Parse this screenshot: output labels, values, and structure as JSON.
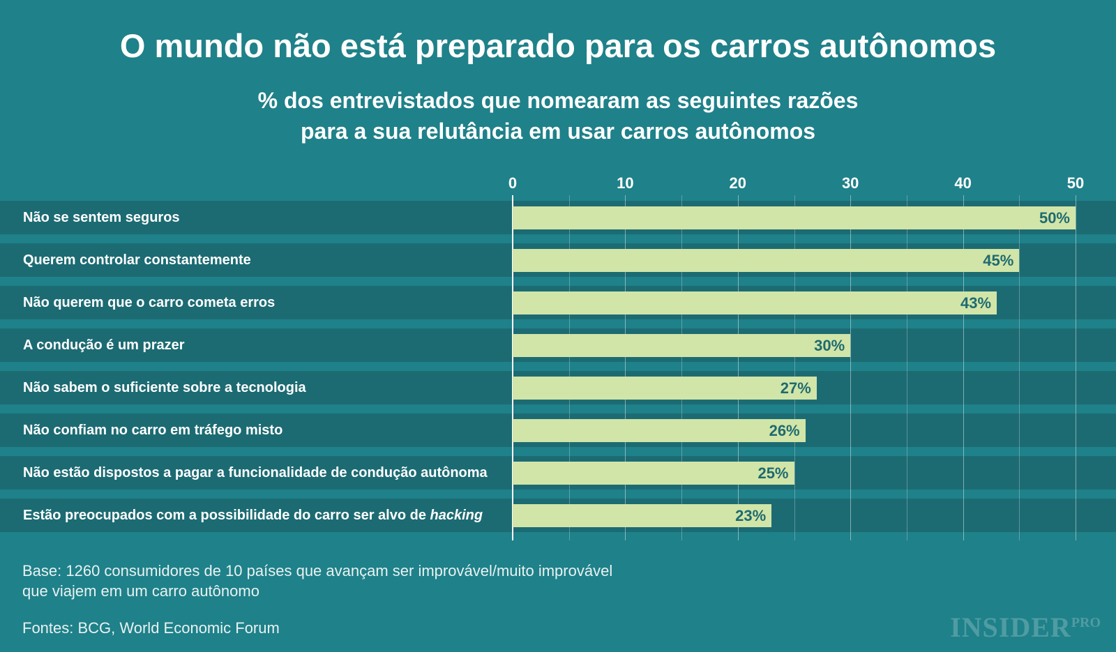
{
  "colors": {
    "background": "#1f8189",
    "band": "#1c6b73",
    "bar": "#d1e5a8",
    "data_label": "#1f6a70",
    "text": "#ffffff"
  },
  "chart_data": {
    "type": "bar",
    "orientation": "horizontal",
    "title": "O mundo não está preparado para os carros autônomos",
    "subtitle": [
      "% dos entrevistados que nomearam as seguintes razões",
      "para a sua relutância em usar carros autônomos"
    ],
    "xlim": [
      0,
      50
    ],
    "xticks": [
      0,
      10,
      20,
      30,
      40,
      50
    ],
    "xlabel": "",
    "ylabel": "",
    "grid": true,
    "categories": [
      "Não se sentem seguros",
      "Querem controlar constantemente",
      "Não querem que o carro cometa erros",
      "A condução é um prazer",
      "Não sabem o suficiente sobre a tecnologia",
      "Não confiam no carro em tráfego misto",
      "Não estão dispostos a pagar a funcionalidade de condução autônoma",
      "Estão preocupados com a possibilidade do carro ser alvo de hacking"
    ],
    "values": [
      50,
      45,
      43,
      30,
      27,
      26,
      25,
      23
    ],
    "value_labels": [
      "50%",
      "45%",
      "43%",
      "30%",
      "27%",
      "26%",
      "25%",
      "23%"
    ]
  },
  "footer": {
    "note": [
      "Base: 1260 consumidores de 10 países que avançam ser improvável/muito improvável",
      "que viajem em um carro autônomo"
    ],
    "source": "Fontes: BCG, World Economic Forum",
    "logo_main": "INSIDER",
    "logo_sup": "PRO"
  }
}
